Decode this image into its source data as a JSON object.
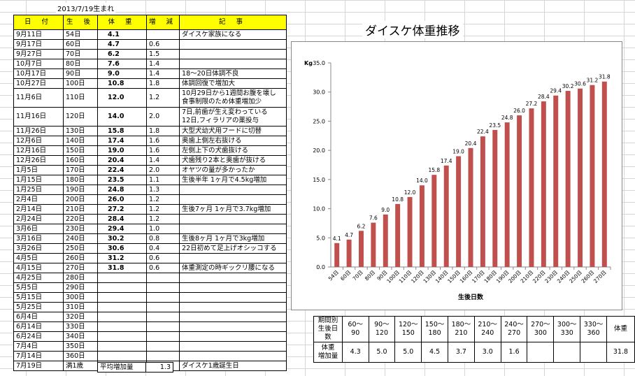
{
  "birth_note": "2013/7/19生まれ",
  "log": {
    "headers": [
      "日 付",
      "生 後",
      "体 重",
      "増 減",
      "記 事"
    ],
    "rows": [
      {
        "date": "9月11日",
        "day": "54日",
        "weight": "4.1",
        "inc": "",
        "note": "ダイスケ家族になる"
      },
      {
        "date": "9月17日",
        "day": "60日",
        "weight": "4.7",
        "inc": "0.6",
        "note": ""
      },
      {
        "date": "9月27日",
        "day": "70日",
        "weight": "6.2",
        "inc": "1.5",
        "note": ""
      },
      {
        "date": "10月7日",
        "day": "80日",
        "weight": "7.6",
        "inc": "1.4",
        "note": ""
      },
      {
        "date": "10月17日",
        "day": "90日",
        "weight": "9.0",
        "inc": "1.4",
        "note": "18～20日体調不良"
      },
      {
        "date": "10月27日",
        "day": "100日",
        "weight": "10.8",
        "inc": "1.8",
        "note": "体調回復で増加大"
      },
      {
        "date": "11月6日",
        "day": "110日",
        "weight": "12.0",
        "inc": "1.2",
        "note": "10月29日から1週間お腹を壊し",
        "note2": "食事制限のため体重増加少"
      },
      {
        "date": "11月16日",
        "day": "120日",
        "weight": "14.0",
        "inc": "2.0",
        "note": "7日,前歯が生え変わっている",
        "note2": "12日,フィラリアの薬投与"
      },
      {
        "date": "11月26日",
        "day": "130日",
        "weight": "15.8",
        "inc": "1.8",
        "note": "大型犬幼犬用フードに切替"
      },
      {
        "date": "12月6日",
        "day": "140日",
        "weight": "17.4",
        "inc": "1.6",
        "note": "奥歯上側左右抜ける"
      },
      {
        "date": "12月16日",
        "day": "150日",
        "weight": "19.0",
        "inc": "1.6",
        "note": "左側上下の犬歯抜ける"
      },
      {
        "date": "12月26日",
        "day": "160日",
        "weight": "20.4",
        "inc": "1.4",
        "note": "犬歯残り2本と奥歯が抜ける"
      },
      {
        "date": "1月5日",
        "day": "170日",
        "weight": "22.4",
        "inc": "2.0",
        "note": "オヤツの量が多かったか"
      },
      {
        "date": "1月15日",
        "day": "180日",
        "weight": "23.5",
        "inc": "1.1",
        "note": "生後半年 1ヶ月で4.5kg増加"
      },
      {
        "date": "1月25日",
        "day": "190日",
        "weight": "24.8",
        "inc": "1.3",
        "note": ""
      },
      {
        "date": "2月4日",
        "day": "200日",
        "weight": "26.0",
        "inc": "1.2",
        "note": ""
      },
      {
        "date": "2月14日",
        "day": "210日",
        "weight": "27.2",
        "inc": "1.2",
        "note": "生後7ヶ月 1ヶ月で3.7kg増加"
      },
      {
        "date": "2月24日",
        "day": "220日",
        "weight": "28.4",
        "inc": "1.2",
        "note": ""
      },
      {
        "date": "3月6日",
        "day": "230日",
        "weight": "29.4",
        "inc": "1.0",
        "note": ""
      },
      {
        "date": "3月16日",
        "day": "240日",
        "weight": "30.2",
        "inc": "0.8",
        "note": "生後8ヶ月 1ヶ月で3kg増加"
      },
      {
        "date": "3月26日",
        "day": "250日",
        "weight": "30.6",
        "inc": "0.4",
        "note": "22日初めて足上げオシッコする"
      },
      {
        "date": "4月5日",
        "day": "260日",
        "weight": "31.2",
        "inc": "0.6",
        "note": ""
      },
      {
        "date": "4月15日",
        "day": "270日",
        "weight": "31.8",
        "inc": "0.6",
        "note": "体重測定の時ギックリ腰になる"
      },
      {
        "date": "4月25日",
        "day": "280日",
        "weight": "",
        "inc": "",
        "note": ""
      },
      {
        "date": "5月5日",
        "day": "290日",
        "weight": "",
        "inc": "",
        "note": ""
      },
      {
        "date": "5月15日",
        "day": "300日",
        "weight": "",
        "inc": "",
        "note": ""
      },
      {
        "date": "5月25日",
        "day": "310日",
        "weight": "",
        "inc": "",
        "note": ""
      },
      {
        "date": "6月4日",
        "day": "320日",
        "weight": "",
        "inc": "",
        "note": ""
      },
      {
        "date": "6月14日",
        "day": "330日",
        "weight": "",
        "inc": "",
        "note": ""
      },
      {
        "date": "6月24日",
        "day": "340日",
        "weight": "",
        "inc": "",
        "note": ""
      },
      {
        "date": "7月4日",
        "day": "350日",
        "weight": "",
        "inc": "",
        "note": ""
      },
      {
        "date": "7月14日",
        "day": "360日",
        "weight": "",
        "inc": "",
        "note": ""
      },
      {
        "date": "7月19日",
        "day": "満1歳",
        "weight": "",
        "inc": "",
        "note": "ダイスケ1歳誕生日"
      }
    ],
    "avg_label": "平均増加量",
    "avg_value": "1.3"
  },
  "chart_data": {
    "type": "bar",
    "title": "ダイスケ体重推移",
    "xlabel": "生後日数",
    "ylabel": "Kg",
    "ylim": [
      0,
      35
    ],
    "yticks": [
      "0.0",
      "5.0",
      "10.0",
      "15.0",
      "20.0",
      "25.0",
      "30.0",
      "35.0"
    ],
    "grid": false,
    "color": "#c0504d",
    "categories": [
      "54日",
      "60日",
      "70日",
      "80日",
      "90日",
      "100日",
      "110日",
      "120日",
      "130日",
      "140日",
      "150日",
      "160日",
      "170日",
      "180日",
      "190日",
      "200日",
      "210日",
      "220日",
      "230日",
      "240日",
      "250日",
      "260日",
      "270日"
    ],
    "values": [
      4.1,
      4.7,
      6.2,
      7.6,
      9.0,
      10.8,
      12.0,
      14.0,
      15.8,
      17.4,
      19.0,
      20.4,
      22.4,
      23.5,
      24.8,
      26.0,
      27.2,
      28.4,
      29.4,
      30.2,
      30.6,
      31.2,
      31.8
    ],
    "data_labels": [
      "4.1",
      "4.7",
      "6.2",
      "7.6",
      "9.0",
      "10.8",
      "12.0",
      "14.0",
      "15.8",
      "17.4",
      "19.0",
      "20.4",
      "22.4",
      "23.5",
      "24.8",
      "26.0",
      "27.2",
      "28.4",
      "29.4",
      "30.2",
      "30.6",
      "31.2",
      "31.8"
    ]
  },
  "summary": {
    "head_label_1": "期間別",
    "head_label_2": "生後日数",
    "periods": [
      {
        "a": "60～",
        "b": "90"
      },
      {
        "a": "90～",
        "b": "120"
      },
      {
        "a": "120～",
        "b": "150"
      },
      {
        "a": "150～",
        "b": "180"
      },
      {
        "a": "180～",
        "b": "210"
      },
      {
        "a": "210～",
        "b": "240"
      },
      {
        "a": "240～",
        "b": "270"
      },
      {
        "a": "270～",
        "b": "300"
      },
      {
        "a": "300～",
        "b": "330"
      },
      {
        "a": "330～",
        "b": "360"
      }
    ],
    "weight_col": "体重",
    "row_label_1": "体重",
    "row_label_2": "増加量",
    "gains": [
      "4.3",
      "5.0",
      "5.0",
      "4.5",
      "3.7",
      "3.0",
      "1.6",
      "",
      "",
      ""
    ],
    "current_weight": "31.8"
  }
}
